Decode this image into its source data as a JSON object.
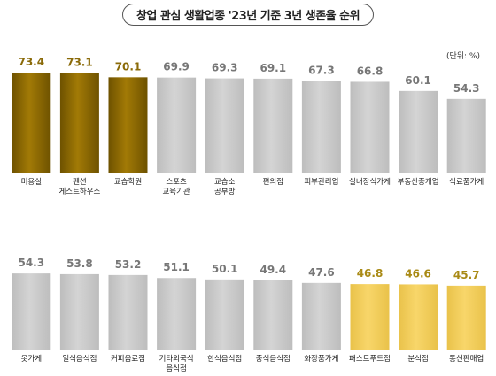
{
  "title": "창업 관심 생활업종 '23년 기준 3년 생존율 순위",
  "unit_note": "(단위: %)",
  "colors": {
    "top": "#a27a06",
    "top_dark": "#6e5200",
    "neutral": "#d4d4d4",
    "neutral_dark": "#bdbdbd",
    "low": "#f8d66a",
    "low_dark": "#e9c24a",
    "value_top": "#8a6a08",
    "value_neutral": "#777777",
    "value_low": "#a98a15"
  },
  "chart_data": [
    {
      "type": "bar",
      "categories": [
        "미용실",
        "펜션\n게스트하우스",
        "교습학원",
        "스포츠\n교육기관",
        "교습소\n공부방",
        "편의점",
        "피부관리업",
        "실내장식가게",
        "부동산중개업",
        "식료품가게"
      ],
      "values": [
        73.4,
        73.1,
        70.1,
        69.9,
        69.3,
        69.1,
        67.3,
        66.8,
        60.1,
        54.3
      ],
      "value_labels": [
        "73.4",
        "73.1",
        "70.1",
        "69.9",
        "69.3",
        "69.1",
        "67.3",
        "66.8",
        "60.1",
        "54.3"
      ],
      "highlight": [
        "top",
        "top",
        "top",
        "neutral",
        "neutral",
        "neutral",
        "neutral",
        "neutral",
        "neutral",
        "neutral"
      ],
      "ylim": [
        0,
        80
      ]
    },
    {
      "type": "bar",
      "categories": [
        "옷가게",
        "일식음식점",
        "커피음료점",
        "기타외국식\n음식점",
        "한식음식점",
        "중식음식점",
        "화장품가게",
        "패스트푸드점",
        "분식점",
        "통신판매업"
      ],
      "values": [
        54.3,
        53.8,
        53.2,
        51.1,
        50.1,
        49.4,
        47.6,
        46.8,
        46.6,
        45.7
      ],
      "value_labels": [
        "54.3",
        "53.8",
        "53.2",
        "51.1",
        "50.1",
        "49.4",
        "47.6",
        "46.8",
        "46.6",
        "45.7"
      ],
      "highlight": [
        "neutral",
        "neutral",
        "neutral",
        "neutral",
        "neutral",
        "neutral",
        "neutral",
        "low",
        "low",
        "low"
      ],
      "ylim": [
        0,
        80
      ]
    }
  ]
}
